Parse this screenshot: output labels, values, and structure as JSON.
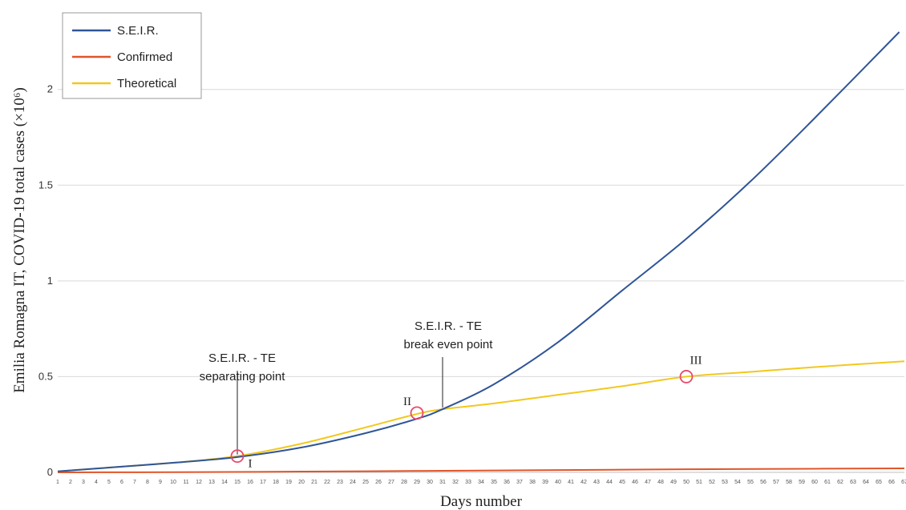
{
  "chart_data": {
    "type": "line",
    "xlabel": "Days number",
    "ylabel": "Emilia Romagna IT, COVID-19 total cases (×10⁶)",
    "xlim": [
      1,
      67
    ],
    "ylim": [
      0,
      2.3
    ],
    "y_ticks": [
      0,
      0.5,
      1,
      1.5,
      2
    ],
    "y_tick_labels": [
      "0",
      "0.5",
      "1",
      "1.5",
      "2"
    ],
    "x_ticks": [
      1,
      2,
      3,
      4,
      5,
      6,
      7,
      8,
      9,
      10,
      11,
      12,
      13,
      14,
      15,
      16,
      17,
      18,
      19,
      20,
      21,
      22,
      23,
      24,
      25,
      26,
      27,
      28,
      29,
      30,
      31,
      32,
      33,
      34,
      35,
      36,
      37,
      38,
      39,
      40,
      41,
      42,
      43,
      44,
      45,
      46,
      47,
      48,
      49,
      50,
      51,
      52,
      53,
      54,
      55,
      56,
      57,
      58,
      59,
      60,
      61,
      62,
      63,
      64,
      65,
      66,
      67
    ],
    "grid": "horizontal",
    "legend_position": "top-left",
    "series": [
      {
        "name": "S.E.I.R.",
        "color": "#2f5597",
        "x": [
          1,
          5,
          10,
          15,
          20,
          25,
          29,
          31,
          35,
          40,
          45,
          50,
          55,
          60,
          66.6
        ],
        "y": [
          0.005,
          0.025,
          0.05,
          0.08,
          0.13,
          0.205,
          0.28,
          0.33,
          0.46,
          0.68,
          0.95,
          1.22,
          1.52,
          1.85,
          2.3
        ]
      },
      {
        "name": "Confirmed",
        "color": "#e0552a",
        "x": [
          1,
          10,
          20,
          30,
          40,
          50,
          60,
          67
        ],
        "y": [
          0.0,
          0.001,
          0.004,
          0.008,
          0.012,
          0.016,
          0.019,
          0.021
        ]
      },
      {
        "name": "Theoretical",
        "color": "#f2c81e",
        "x": [
          1,
          5,
          10,
          15,
          20,
          25,
          29,
          31,
          35,
          40,
          45,
          50,
          55,
          60,
          67
        ],
        "y": [
          0.005,
          0.025,
          0.05,
          0.085,
          0.15,
          0.235,
          0.305,
          0.33,
          0.36,
          0.405,
          0.45,
          0.5,
          0.525,
          0.55,
          0.58
        ]
      }
    ],
    "markers": [
      {
        "label": "I",
        "x": 15,
        "y": 0.085
      },
      {
        "label": "II",
        "x": 29,
        "y": 0.31
      },
      {
        "label": "III",
        "x": 50,
        "y": 0.5
      }
    ],
    "annotations": [
      {
        "line1": "S.E.I.R. - TE",
        "line2": "separating point",
        "x": 15,
        "y": 0.085
      },
      {
        "line1": "S.E.I.R. - TE",
        "line2": "break even point",
        "x": 31,
        "y": 0.33
      }
    ]
  }
}
